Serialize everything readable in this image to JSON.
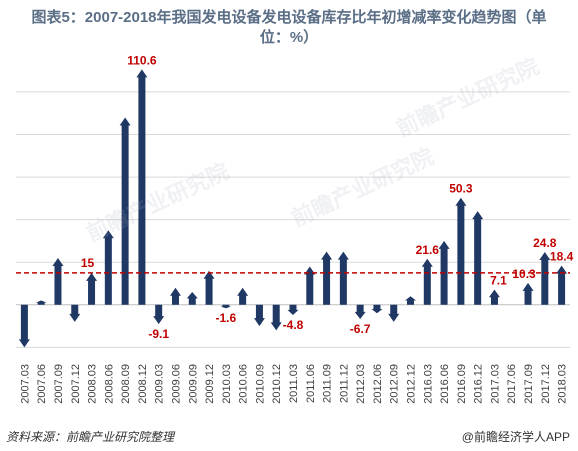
{
  "title_line1": "图表5：2007-2018年我国发电设备发电设备库存比年初增减率变化趋势图（单",
  "title_line2": "位：%）",
  "source": "资料来源：前瞻产业研究院整理",
  "brand": "@前瞻经济学人APP",
  "watermark": "前瞻产业研究院",
  "colors": {
    "bar": "#1f3864",
    "label": "#c00000",
    "avg_line": "#c00000",
    "title": "#5a6e86"
  },
  "chart_data": {
    "type": "bar",
    "categories": [
      "2007.03",
      "2007.06",
      "2007.09",
      "2007.12",
      "2008.03",
      "2008.06",
      "2008.09",
      "2008.12",
      "2009.03",
      "2009.06",
      "2009.09",
      "2009.12",
      "2010.03",
      "2010.06",
      "2010.09",
      "2010.12",
      "2011.03",
      "2011.06",
      "2011.09",
      "2011.12",
      "2012.03",
      "2012.06",
      "2012.09",
      "2012.12",
      "2016.03",
      "2016.06",
      "2016.09",
      "2016.12",
      "2017.03",
      "2017.06",
      "2017.09",
      "2017.12",
      "2018.03"
    ],
    "values": [
      -20,
      2,
      22,
      -8,
      15,
      35,
      88,
      110.6,
      -9.1,
      8,
      6,
      16,
      -1.6,
      8,
      -10,
      -12,
      -4.8,
      18,
      25,
      25,
      -6.7,
      -4,
      -8,
      4,
      21.6,
      30,
      50.3,
      44,
      7.1,
      0,
      10.3,
      24.8,
      18.4
    ],
    "data_labels": {
      "4": "15",
      "7": "110.6",
      "8": "-9.1",
      "12": "-1.6",
      "16": "-4.8",
      "20": "-6.7",
      "24": "21.6",
      "26": "50.3",
      "28": "7.1",
      "30": "10.3",
      "31": "24.8",
      "32": "18.4"
    },
    "average_line": 15,
    "ylim": [
      -25,
      115
    ],
    "grid": true
  }
}
